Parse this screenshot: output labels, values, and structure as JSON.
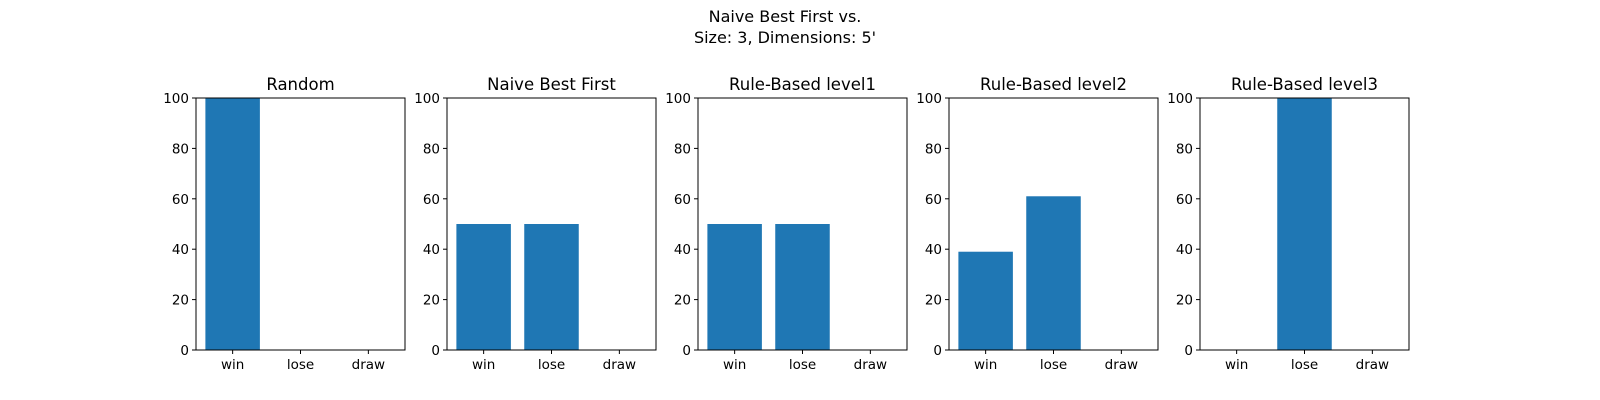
{
  "figure": {
    "title_line1": "Naive Best First vs.",
    "title_line2": "Size: 3, Dimensions: 5'"
  },
  "colors": {
    "bar": "#1f77b4",
    "axis": "#000000",
    "background": "#ffffff"
  },
  "chart_data": [
    {
      "type": "bar",
      "title": "Random",
      "categories": [
        "win",
        "lose",
        "draw"
      ],
      "values": [
        100,
        0,
        0
      ],
      "ylim": [
        0,
        100
      ],
      "yticks": [
        0,
        20,
        40,
        60,
        80,
        100
      ],
      "xlabel": "",
      "ylabel": "",
      "grid": false
    },
    {
      "type": "bar",
      "title": "Naive Best First",
      "categories": [
        "win",
        "lose",
        "draw"
      ],
      "values": [
        50,
        50,
        0
      ],
      "ylim": [
        0,
        100
      ],
      "yticks": [
        0,
        20,
        40,
        60,
        80,
        100
      ],
      "xlabel": "",
      "ylabel": "",
      "grid": false
    },
    {
      "type": "bar",
      "title": "Rule-Based level1",
      "categories": [
        "win",
        "lose",
        "draw"
      ],
      "values": [
        50,
        50,
        0
      ],
      "ylim": [
        0,
        100
      ],
      "yticks": [
        0,
        20,
        40,
        60,
        80,
        100
      ],
      "xlabel": "",
      "ylabel": "",
      "grid": false
    },
    {
      "type": "bar",
      "title": "Rule-Based level2",
      "categories": [
        "win",
        "lose",
        "draw"
      ],
      "values": [
        39,
        61,
        0
      ],
      "ylim": [
        0,
        100
      ],
      "yticks": [
        0,
        20,
        40,
        60,
        80,
        100
      ],
      "xlabel": "",
      "ylabel": "",
      "grid": false
    },
    {
      "type": "bar",
      "title": "Rule-Based level3",
      "categories": [
        "win",
        "lose",
        "draw"
      ],
      "values": [
        0,
        100,
        0
      ],
      "ylim": [
        0,
        100
      ],
      "yticks": [
        0,
        20,
        40,
        60,
        80,
        100
      ],
      "xlabel": "",
      "ylabel": "",
      "grid": false
    }
  ]
}
